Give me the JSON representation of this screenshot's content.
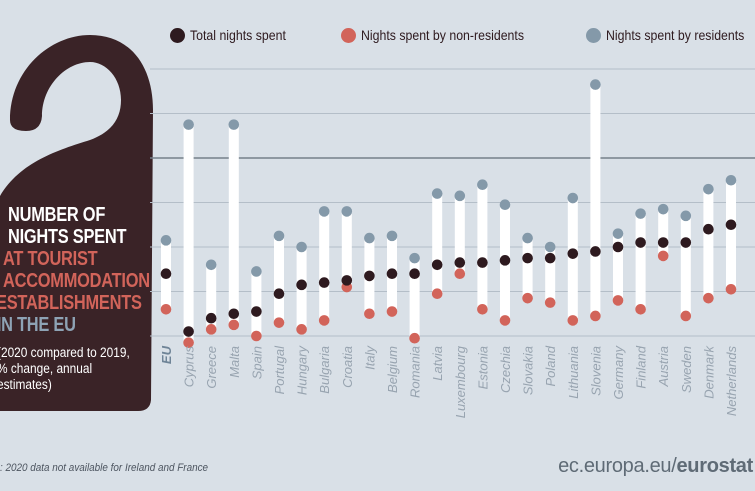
{
  "panel": {
    "title_white": [
      "NUMBER OF",
      "NIGHTS SPENT"
    ],
    "title_red": [
      "AT TOURIST",
      "ACCOMMODATION",
      "ESTABLISHMENTS"
    ],
    "title_blue": "IN THE EU",
    "subtitle": [
      "(2020 compared to 2019,",
      "% change, annual",
      "estimates)"
    ]
  },
  "footer": {
    "note": ": 2020 data not available for Ireland and France",
    "source_prefix": "ec.europa.eu/",
    "source_brand": "eurostat"
  },
  "colors": {
    "background": "#d9e0e7",
    "panel": "#3a2327",
    "total": "#2e1a1f",
    "non_residents": "#d2645a",
    "residents": "#8499a9",
    "range_bar": "#ffffff",
    "title_red": "#d2645a",
    "title_blue": "#8ea3b5"
  },
  "chart_data": {
    "type": "scatter",
    "subtype": "dot-range",
    "unit": "% change 2020 vs 2019",
    "ylim": [
      -80,
      40
    ],
    "grid": true,
    "grid_step": 20,
    "zero_line_emphasized": true,
    "legend_position": "top",
    "legend": [
      "Total nights spent",
      "Nights spent by non-residents",
      "Nights spent by residents"
    ],
    "categories": [
      "EU",
      "Cyprus",
      "Greece",
      "Malta",
      "Spain",
      "Portugal",
      "Hungary",
      "Bulgaria",
      "Croatia",
      "Italy",
      "Belgium",
      "Romania",
      "Latvia",
      "Luxembourg",
      "Estonia",
      "Czechia",
      "Slovakia",
      "Poland",
      "Lithuania",
      "Slovenia",
      "Germany",
      "Finland",
      "Austria",
      "Sweden",
      "Denmark",
      "Netherlands"
    ],
    "series": [
      {
        "name": "Total nights spent",
        "color": "#2e1a1f",
        "values": [
          -52,
          -78,
          -72,
          -70,
          -69,
          -61,
          -57,
          -56,
          -55,
          -53,
          -52,
          -52,
          -48,
          -47,
          -47,
          -46,
          -45,
          -45,
          -43,
          -42,
          -40,
          -38,
          -38,
          -38,
          -32,
          -30
        ]
      },
      {
        "name": "Nights spent by non-residents",
        "color": "#d2645a",
        "values": [
          -68,
          -83,
          -77,
          -75,
          -80,
          -74,
          -77,
          -73,
          -58,
          -70,
          -69,
          -81,
          -61,
          -52,
          -68,
          -73,
          -63,
          -65,
          -73,
          -71,
          -64,
          -68,
          -44,
          -71,
          -63,
          -59
        ]
      },
      {
        "name": "Nights spent by residents",
        "color": "#8499a9",
        "values": [
          -37,
          15,
          -48,
          15,
          -51,
          -35,
          -40,
          -24,
          -24,
          -36,
          -35,
          -45,
          -16,
          -17,
          -12,
          -21,
          -36,
          -40,
          -18,
          33,
          -34,
          -25,
          -23,
          -26,
          -14,
          -10
        ]
      }
    ]
  }
}
